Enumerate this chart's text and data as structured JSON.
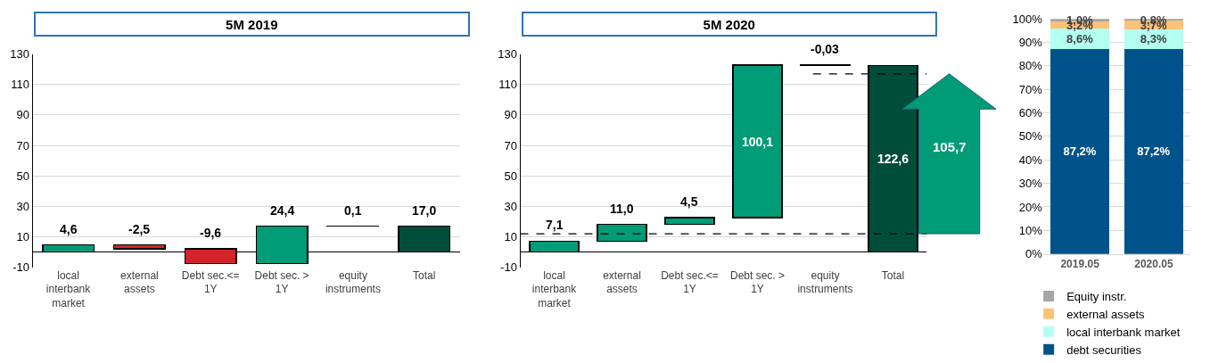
{
  "chart_data": [
    {
      "type": "bar",
      "title": "5M 2019",
      "categories": [
        "local interbank market",
        "external assets",
        "Debt sec.<= 1Y",
        "Debt sec. > 1Y",
        "equity instruments",
        "Total"
      ],
      "values": [
        4.6,
        -2.5,
        -9.6,
        24.4,
        0.1,
        17.0
      ],
      "base": [
        0,
        4.6,
        2.1,
        -7.5,
        16.9,
        0
      ],
      "colors": [
        "#009b77",
        "#d4242b",
        "#d4242b",
        "#009b77",
        "#000000",
        "#004d3a"
      ],
      "value_labels": [
        "4,6",
        "-2,5",
        "-9,6",
        "24,4",
        "0,1",
        "17,0"
      ],
      "ylim": [
        -10,
        130
      ],
      "yticks": [
        -10,
        10,
        30,
        50,
        70,
        90,
        110,
        130
      ],
      "grid": "y"
    },
    {
      "type": "bar",
      "title": "5M 2020",
      "categories": [
        "local interbank market",
        "external assets",
        "Debt sec.<= 1Y",
        "Debt sec. > 1Y",
        "equity instruments",
        "Total"
      ],
      "values": [
        7.1,
        11.0,
        4.5,
        100.1,
        -0.03,
        122.6
      ],
      "base": [
        0,
        7.1,
        18.1,
        22.6,
        122.7,
        0
      ],
      "colors": [
        "#009b77",
        "#009b77",
        "#009b77",
        "#009b77",
        "#000000",
        "#004d3a"
      ],
      "value_labels": [
        "7,1",
        "11,0",
        "4,5",
        "100,1",
        "-0,03",
        "122,6"
      ],
      "ylim": [
        -10,
        130
      ],
      "yticks": [
        -10,
        10,
        30,
        50,
        70,
        90,
        110,
        130
      ],
      "grid": "y",
      "ref_lines": [
        {
          "axis": "y",
          "value": 12,
          "color": "#000000",
          "line_style": "dashed"
        },
        {
          "axis": "y",
          "value": 117,
          "color": "#000000",
          "line_style": "dashed"
        }
      ],
      "annotations": [
        "105,7"
      ]
    },
    {
      "type": "bar",
      "stacked": true,
      "categories": [
        "2019.05",
        "2020.05"
      ],
      "series": [
        {
          "name": "debt securities",
          "color": "#00538a",
          "values": [
            87.2,
            87.2
          ],
          "value_labels": [
            "87,2%",
            "87,2%"
          ]
        },
        {
          "name": "local interbank market",
          "color": "#b3fff0",
          "values": [
            8.6,
            8.3
          ],
          "value_labels": [
            "8,6%",
            "8,3%"
          ]
        },
        {
          "name": "external assets",
          "color": "#fbc27a",
          "values": [
            3.2,
            3.7
          ],
          "value_labels": [
            "3,2%",
            "3,7%"
          ]
        },
        {
          "name": "Equity instr.",
          "color": "#a6a6a6",
          "values": [
            1.0,
            0.8
          ],
          "value_labels": [
            "1,0%",
            "0,8%"
          ]
        }
      ],
      "ylim": [
        0,
        100
      ],
      "yticks": [
        {
          "value": 0,
          "label": "0%"
        },
        {
          "value": 10,
          "label": "10%"
        },
        {
          "value": 20,
          "label": "20%"
        },
        {
          "value": 30,
          "label": "30%"
        },
        {
          "value": 40,
          "label": "40%"
        },
        {
          "value": 50,
          "label": "50%"
        },
        {
          "value": 60,
          "label": "60%"
        },
        {
          "value": 70,
          "label": "70%"
        },
        {
          "value": 80,
          "label": "80%"
        },
        {
          "value": 90,
          "label": "90%"
        },
        {
          "value": 100,
          "label": "100%"
        }
      ],
      "grid": "y",
      "legend": "bottom"
    }
  ]
}
